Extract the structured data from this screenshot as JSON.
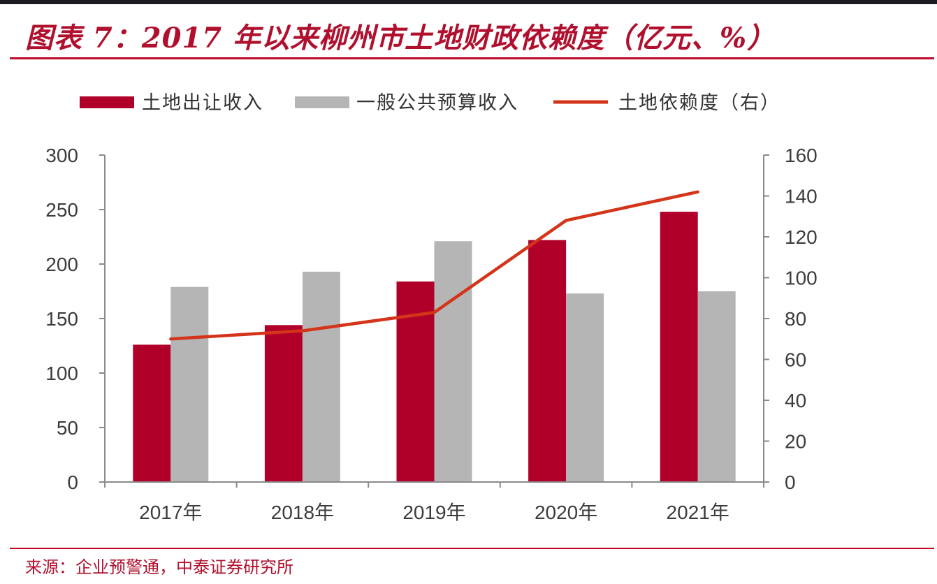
{
  "title": "图表 7：2017 年以来柳州市土地财政依赖度（亿元、%）",
  "source": "来源：企业预警通，中泰证券研究所",
  "chart_data": {
    "type": "bar",
    "categories": [
      "2017年",
      "2018年",
      "2019年",
      "2020年",
      "2021年"
    ],
    "series": [
      {
        "name": "土地出让收入",
        "type": "bar",
        "axis": "left",
        "color": "#b0002a",
        "values": [
          126,
          144,
          184,
          222,
          248
        ]
      },
      {
        "name": "一般公共预算收入",
        "type": "bar",
        "axis": "left",
        "color": "#b5b5b5",
        "values": [
          179,
          193,
          221,
          173,
          175
        ]
      },
      {
        "name": "土地依赖度（右）",
        "type": "line",
        "axis": "right",
        "color": "#d4341a",
        "values": [
          70,
          74,
          83,
          128,
          142
        ]
      }
    ],
    "y_left": {
      "range": [
        0,
        300
      ],
      "ticks": [
        0,
        50,
        100,
        150,
        200,
        250,
        300
      ]
    },
    "y_right": {
      "range": [
        0,
        160
      ],
      "ticks": [
        0,
        20,
        40,
        60,
        80,
        100,
        120,
        140,
        160
      ]
    },
    "legend_position": "top-left",
    "grid": false
  }
}
